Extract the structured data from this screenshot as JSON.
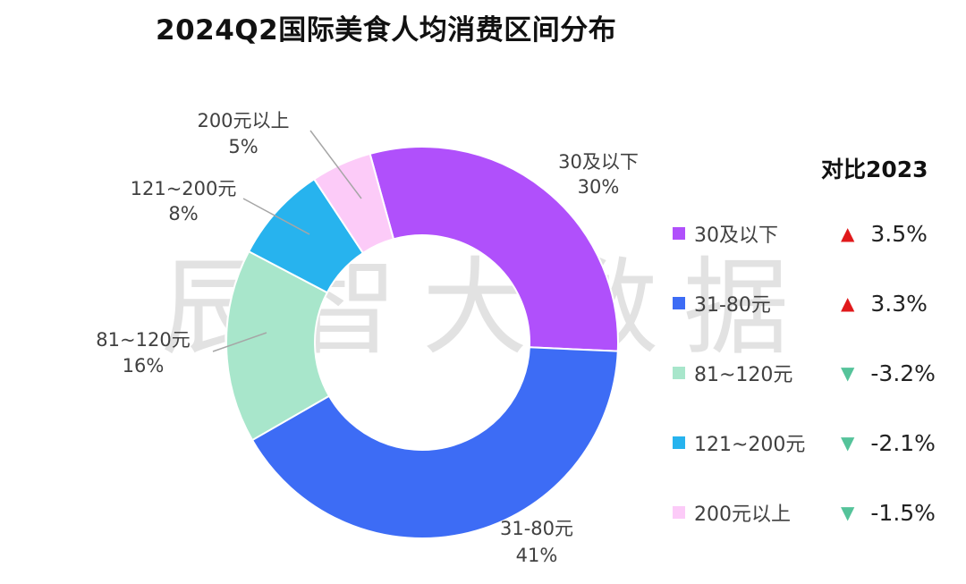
{
  "title": "2024Q2国际美食人均消费区间分布",
  "watermark": "辰智大数据",
  "comparison_title": "对比2023",
  "chart_data": {
    "type": "donut",
    "title": "2024Q2国际美食人均消费区间分布",
    "unit": "%",
    "slices": [
      {
        "label": "30及以下",
        "value": 30,
        "value_label": "30%",
        "color": "#b050fb"
      },
      {
        "label": "31-80元",
        "value": 41,
        "value_label": "41%",
        "color": "#3d6cf5"
      },
      {
        "label": "81~120元",
        "value": 16,
        "value_label": "16%",
        "color": "#a8e6cb"
      },
      {
        "label": "121~200元",
        "value": 8,
        "value_label": "8%",
        "color": "#27b3ee"
      },
      {
        "label": "200元以上",
        "value": 5,
        "value_label": "5%",
        "color": "#fccbf8"
      }
    ],
    "comparison_2023": [
      {
        "label": "30及以下",
        "change": "3.5%",
        "direction": "up",
        "color": "#e0191b"
      },
      {
        "label": "31-80元",
        "change": "3.3%",
        "direction": "up",
        "color": "#e0191b"
      },
      {
        "label": "81~120元",
        "change": "-3.2%",
        "direction": "down",
        "color": "#55c39a"
      },
      {
        "label": "121~200元",
        "change": "-2.1%",
        "direction": "down",
        "color": "#55c39a"
      },
      {
        "label": "200元以上",
        "change": "-1.5%",
        "direction": "down",
        "color": "#55c39a"
      }
    ],
    "legend": "right"
  }
}
